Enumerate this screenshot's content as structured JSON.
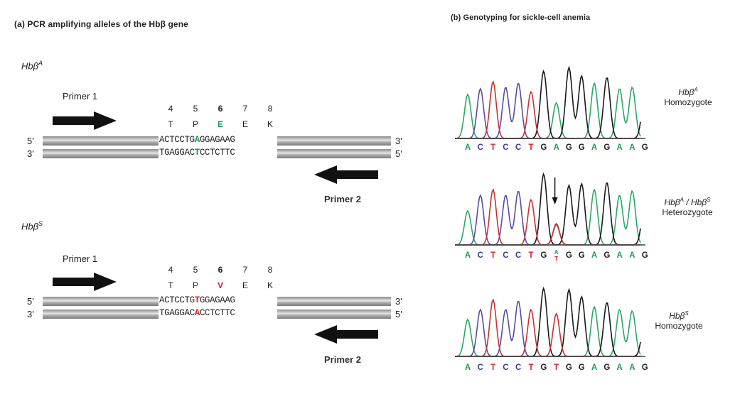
{
  "panel_a": {
    "title": "(a)  PCR amplifying alleles of the Hbβ gene",
    "alleles": [
      {
        "label": "Hbβ",
        "sup": "A",
        "primer1": "Primer 1",
        "primer2": "Primer 2",
        "codon_numbers": [
          "4",
          "5",
          "6",
          "7",
          "8"
        ],
        "amino_acids": [
          "T",
          "P",
          "E",
          "E",
          "K"
        ],
        "mutated_aa_index": 2,
        "top_strand": {
          "left": "5'",
          "right": "3'",
          "pre": "ACTCCTG",
          "mut": "A",
          "post": "GGAGAAG"
        },
        "bottom_strand": {
          "left": "3'",
          "right": "5'",
          "pre": "TGAGGAC",
          "mut": "T",
          "post": "CCTCTTC"
        },
        "highlight": "green"
      },
      {
        "label": "Hbβ",
        "sup": "S",
        "primer1": "Primer 1",
        "primer2": "Primer 2",
        "codon_numbers": [
          "4",
          "5",
          "6",
          "7",
          "8"
        ],
        "amino_acids": [
          "T",
          "P",
          "V",
          "E",
          "K"
        ],
        "mutated_aa_index": 2,
        "top_strand": {
          "left": "5'",
          "right": "3'",
          "pre": "ACTCCTG",
          "mut": "T",
          "post": "GGAGAAG"
        },
        "bottom_strand": {
          "left": "3'",
          "right": "5'",
          "pre": "TGAGGAC",
          "mut": "A",
          "post": "CCTCTTC"
        },
        "highlight": "red"
      }
    ]
  },
  "panel_b": {
    "title": "(b)  Genotyping for sickle-cell anemia",
    "chromatograms": [
      {
        "genotype_html_base": "Hbβ",
        "genotype_sup": "A",
        "genotype_second": "",
        "genotype_second_sup": "",
        "type": "Homozygote",
        "sequence": [
          "A",
          "C",
          "T",
          "C",
          "C",
          "T",
          "G",
          "A",
          "G",
          "G",
          "A",
          "G",
          "A",
          "A",
          "G"
        ]
      },
      {
        "genotype_html_base": "Hbβ",
        "genotype_sup": "A",
        "genotype_second": " / Hbβ",
        "genotype_second_sup": "S",
        "type": "Heterozygote",
        "sequence": [
          "A",
          "C",
          "T",
          "C",
          "C",
          "T",
          "G",
          "A/T",
          "G",
          "G",
          "A",
          "G",
          "A",
          "A",
          "G"
        ]
      },
      {
        "genotype_html_base": "Hbβ",
        "genotype_sup": "S",
        "genotype_second": "",
        "genotype_second_sup": "",
        "type": "Homozygote",
        "sequence": [
          "A",
          "C",
          "T",
          "C",
          "C",
          "T",
          "G",
          "T",
          "G",
          "G",
          "A",
          "G",
          "A",
          "A",
          "G"
        ]
      }
    ],
    "base_colors": {
      "A": "#1f9a55",
      "C": "#3a3aa8",
      "G": "#222222",
      "T": "#d4252a"
    },
    "trace_colors": {
      "A": "#2aa866",
      "C": "#5b4aa8",
      "G": "#1a1a1a",
      "T": "#cc3030"
    }
  }
}
